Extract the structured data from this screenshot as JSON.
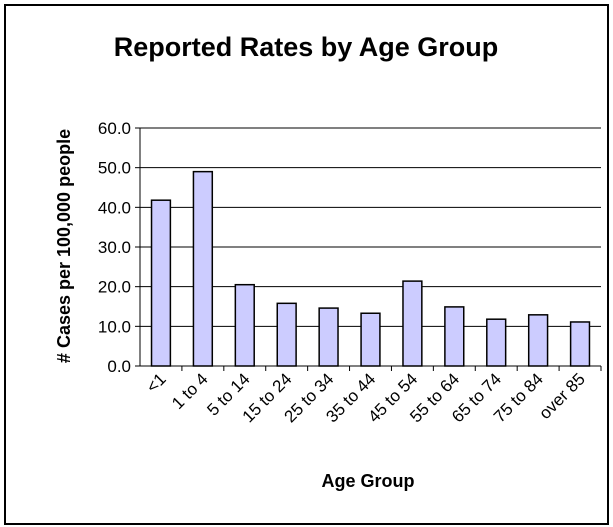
{
  "chart_data": {
    "type": "bar",
    "title": "Reported Rates by Age Group",
    "xlabel": "Age Group",
    "ylabel": "# Cases per 100,000 people",
    "categories": [
      "<1",
      "1 to 4",
      "5 to 14",
      "15 to 24",
      "25 to 34",
      "35 to 44",
      "45 to 54",
      "55 to 64",
      "65 to 74",
      "75 to 84",
      "over 85"
    ],
    "values": [
      41.8,
      49.0,
      20.5,
      15.8,
      14.6,
      13.3,
      21.4,
      14.9,
      11.8,
      12.9,
      11.1
    ],
    "ylim": [
      0,
      60
    ],
    "yticks": [
      0,
      10,
      20,
      30,
      40,
      50,
      60
    ],
    "ytick_labels": [
      "0.0",
      "10.0",
      "20.0",
      "30.0",
      "40.0",
      "50.0",
      "60.0"
    ],
    "grid": true,
    "legend": "none",
    "colors": {
      "bar_fill": "#ccccff",
      "bar_stroke": "#000000",
      "grid": "#000000",
      "frame": "#000000",
      "background": "#ffffff"
    }
  }
}
